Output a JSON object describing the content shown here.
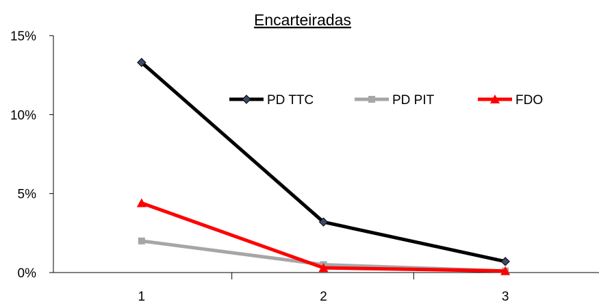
{
  "chart_data": {
    "type": "line",
    "title": "Encarteiradas",
    "xlabel": "",
    "ylabel": "",
    "categories": [
      "1",
      "2",
      "3"
    ],
    "yticks": [
      "0%",
      "5%",
      "10%",
      "15%"
    ],
    "ylim": [
      0,
      15
    ],
    "grid": false,
    "legend_position": "top-right",
    "series": [
      {
        "name": "PD TTC",
        "values": [
          13.3,
          3.2,
          0.7
        ],
        "color": "#000000",
        "marker": "diamond",
        "marker_color": "#3d4a66"
      },
      {
        "name": "PD PIT",
        "values": [
          2.0,
          0.5,
          0.1
        ],
        "color": "#a6a6a6",
        "marker": "square",
        "marker_color": "#a6a6a6"
      },
      {
        "name": "FDO",
        "values": [
          4.4,
          0.3,
          0.1
        ],
        "color": "#ff0000",
        "marker": "triangle",
        "marker_color": "#ff0000"
      }
    ]
  }
}
